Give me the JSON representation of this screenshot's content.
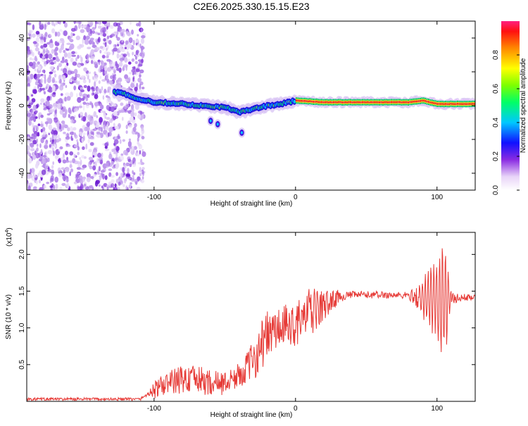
{
  "title": "C2E6.2025.330.15.15.E23",
  "colors": {
    "signal_line": "#e63a36",
    "axis": "#000000",
    "background": "#ffffff"
  },
  "chart_data": [
    {
      "type": "heatmap",
      "xlabel": "Height of straight line (km)",
      "ylabel": "Frequency (Hz)",
      "xlim": [
        -190,
        127
      ],
      "ylim": [
        -50,
        50
      ],
      "x_ticks": [
        -100,
        0,
        100
      ],
      "y_ticks": [
        -40,
        -20,
        0,
        20,
        40
      ],
      "colorbar": {
        "label": "Normalized spectral amplitude",
        "range": [
          0,
          1
        ],
        "ticks": [
          "0.0",
          "0.2",
          "0.4",
          "0.6",
          "0.8"
        ],
        "tick_values": [
          0,
          0.2,
          0.4,
          0.6,
          0.8
        ]
      },
      "features": {
        "noise_region_x": [
          -190,
          -110
        ],
        "ridge": [
          [
            -125,
            8
          ],
          [
            -115,
            5
          ],
          [
            -100,
            2
          ],
          [
            -80,
            1
          ],
          [
            -65,
            0
          ],
          [
            -50,
            -1
          ],
          [
            -40,
            -4
          ],
          [
            -30,
            -2
          ],
          [
            -20,
            0
          ],
          [
            -10,
            1
          ],
          [
            0,
            3
          ],
          [
            20,
            2
          ],
          [
            40,
            2
          ],
          [
            60,
            2
          ],
          [
            80,
            2
          ],
          [
            90,
            3
          ],
          [
            100,
            1
          ],
          [
            110,
            1
          ],
          [
            127,
            1
          ]
        ],
        "side_blobs": [
          [
            -60,
            -9
          ],
          [
            -55,
            -11
          ],
          [
            -38,
            -16
          ]
        ]
      }
    },
    {
      "type": "line",
      "xlabel": "Height of straight line (km)",
      "ylabel": "SNR (10 * v/v)",
      "y_scale_label": "(x10",
      "y_scale_exp": "4",
      "y_scale_close": ")",
      "xlim": [
        -190,
        127
      ],
      "ylim": [
        0,
        2.3
      ],
      "x_ticks": [
        -100,
        0,
        100
      ],
      "y_ticks": [
        "0.5",
        "1.0",
        "1.5",
        "2.0"
      ],
      "y_tick_values": [
        0.5,
        1.0,
        1.5,
        2.0
      ],
      "series": [
        {
          "name": "SNR",
          "envelope": [
            [
              -190,
              0.03
            ],
            [
              -110,
              0.03
            ],
            [
              -100,
              0.15
            ],
            [
              -90,
              0.25
            ],
            [
              -80,
              0.3
            ],
            [
              -70,
              0.3
            ],
            [
              -60,
              0.25
            ],
            [
              -50,
              0.25
            ],
            [
              -40,
              0.35
            ],
            [
              -30,
              0.55
            ],
            [
              -25,
              0.75
            ],
            [
              -20,
              0.9
            ],
            [
              -10,
              1.0
            ],
            [
              0,
              1.05
            ],
            [
              10,
              1.2
            ],
            [
              20,
              1.3
            ],
            [
              30,
              1.42
            ],
            [
              40,
              1.45
            ],
            [
              60,
              1.45
            ],
            [
              80,
              1.44
            ],
            [
              95,
              1.4
            ],
            [
              110,
              1.4
            ],
            [
              127,
              1.42
            ]
          ],
          "noise": [
            [
              -190,
              0.02
            ],
            [
              -105,
              0.02
            ],
            [
              -100,
              0.12
            ],
            [
              -80,
              0.2
            ],
            [
              -60,
              0.18
            ],
            [
              -45,
              0.15
            ],
            [
              -35,
              0.2
            ],
            [
              -25,
              0.35
            ],
            [
              -10,
              0.3
            ],
            [
              5,
              0.3
            ],
            [
              10,
              0.35
            ],
            [
              25,
              0.15
            ],
            [
              35,
              0.05
            ],
            [
              80,
              0.05
            ],
            [
              88,
              0.2
            ],
            [
              95,
              0.4
            ],
            [
              100,
              0.6
            ],
            [
              105,
              0.85
            ],
            [
              110,
              0.08
            ],
            [
              127,
              0.03
            ]
          ]
        }
      ]
    }
  ]
}
